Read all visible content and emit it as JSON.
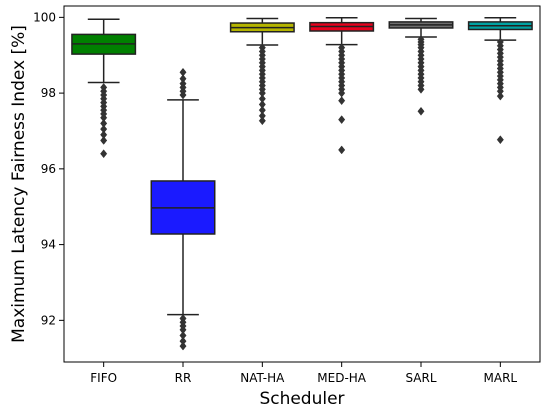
{
  "chart_data": {
    "type": "box",
    "xlabel": "Scheduler",
    "ylabel": "Maximum Latency Fairness Index [%]",
    "ylim": [
      90.9,
      100.3
    ],
    "yticks": [
      92,
      94,
      96,
      98,
      100
    ],
    "grid": false,
    "series": [
      {
        "name": "FIFO",
        "color": "#008000",
        "whisker_low": 98.28,
        "q1": 99.03,
        "median": 99.3,
        "q3": 99.55,
        "whisker_high": 99.95,
        "outliers": [
          98.15,
          98.05,
          97.95,
          97.85,
          97.75,
          97.65,
          97.55,
          97.45,
          97.35,
          97.2,
          97.05,
          96.9,
          96.75,
          96.4
        ]
      },
      {
        "name": "RR",
        "color": "#1a1aff",
        "whisker_low": 92.15,
        "q1": 94.28,
        "median": 94.97,
        "q3": 95.68,
        "whisker_high": 97.82,
        "outliers": [
          98.55,
          98.38,
          98.25,
          98.15,
          98.05,
          97.95,
          92.05,
          91.95,
          91.85,
          91.75,
          91.6,
          91.45,
          91.32
        ]
      },
      {
        "name": "NAT-HA",
        "color": "#b5b500",
        "whisker_low": 99.27,
        "q1": 99.62,
        "median": 99.73,
        "q3": 99.85,
        "whisker_high": 99.97,
        "outliers": [
          99.2,
          99.1,
          99.0,
          98.9,
          98.8,
          98.7,
          98.6,
          98.5,
          98.4,
          98.3,
          98.2,
          98.1,
          98.0,
          97.85,
          97.7,
          97.55,
          97.4,
          97.27
        ]
      },
      {
        "name": "MED-HA",
        "color": "#e8001c",
        "whisker_low": 99.28,
        "q1": 99.64,
        "median": 99.76,
        "q3": 99.86,
        "whisker_high": 99.99,
        "outliers": [
          99.2,
          99.1,
          99.0,
          98.9,
          98.8,
          98.7,
          98.6,
          98.5,
          98.4,
          98.3,
          98.2,
          98.1,
          98.0,
          97.8,
          97.3,
          96.5
        ]
      },
      {
        "name": "SARL",
        "color": "#6e6e6e",
        "whisker_low": 99.48,
        "q1": 99.72,
        "median": 99.8,
        "q3": 99.88,
        "whisker_high": 99.97,
        "outliers": [
          99.42,
          99.35,
          99.28,
          99.2,
          99.1,
          99.0,
          98.9,
          98.8,
          98.7,
          98.6,
          98.5,
          98.4,
          98.3,
          98.2,
          98.1,
          97.52
        ]
      },
      {
        "name": "MARL",
        "color": "#00a3a3",
        "whisker_low": 99.4,
        "q1": 99.68,
        "median": 99.78,
        "q3": 99.88,
        "whisker_high": 99.99,
        "outliers": [
          99.35,
          99.25,
          99.15,
          99.05,
          98.95,
          98.85,
          98.75,
          98.65,
          98.55,
          98.45,
          98.35,
          98.25,
          98.15,
          98.05,
          97.92,
          96.77
        ]
      }
    ]
  }
}
